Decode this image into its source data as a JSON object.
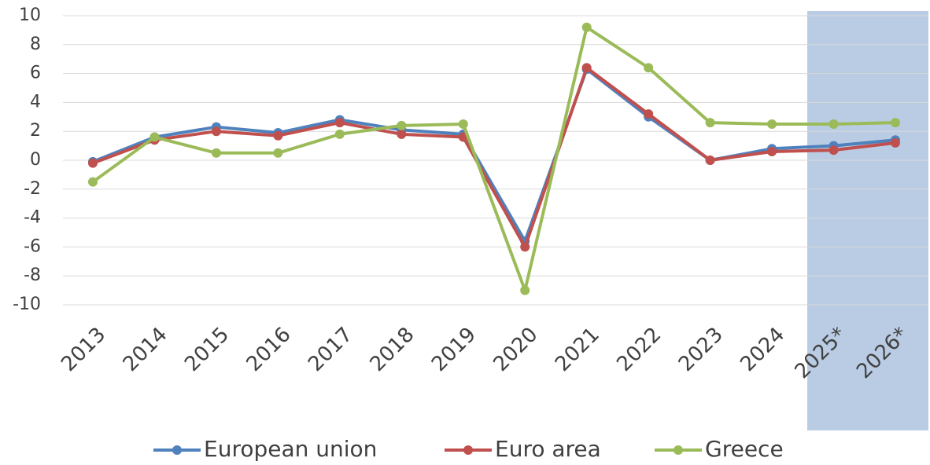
{
  "chart_data": {
    "type": "line",
    "categories": [
      "2013",
      "2014",
      "2015",
      "2016",
      "2017",
      "2018",
      "2019",
      "2020",
      "2021",
      "2022",
      "2023",
      "2024",
      "2025*",
      "2026*"
    ],
    "series": [
      {
        "name": "European union",
        "color": "#4f81bd",
        "values": [
          -0.1,
          1.6,
          2.3,
          1.9,
          2.8,
          2.1,
          1.8,
          -5.6,
          6.3,
          3.0,
          0.0,
          0.8,
          1.0,
          1.4
        ]
      },
      {
        "name": "Euro area",
        "color": "#c0504d",
        "values": [
          -0.2,
          1.4,
          2.0,
          1.7,
          2.6,
          1.8,
          1.6,
          -6.0,
          6.4,
          3.2,
          0.0,
          0.6,
          0.7,
          1.2
        ]
      },
      {
        "name": "Greece",
        "color": "#9bbb59",
        "values": [
          -1.5,
          1.6,
          0.5,
          0.5,
          1.8,
          2.4,
          2.5,
          -9.0,
          9.2,
          6.4,
          2.6,
          2.5,
          2.5,
          2.6
        ]
      }
    ],
    "ylim": [
      -10,
      10
    ],
    "yticks": [
      -10,
      -8,
      -6,
      -4,
      -2,
      0,
      2,
      4,
      6,
      8,
      10
    ],
    "grid": true,
    "legend": "bottom"
  }
}
